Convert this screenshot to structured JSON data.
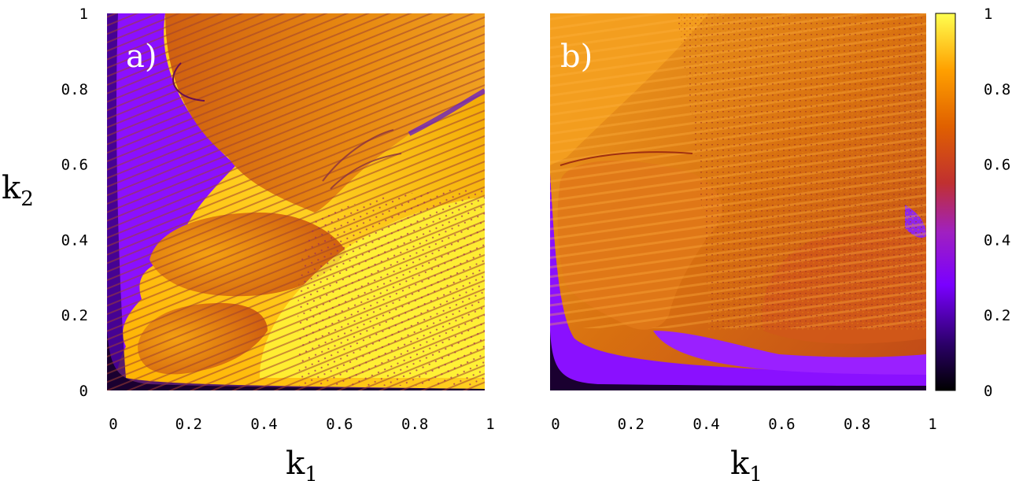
{
  "chart_data": [
    {
      "type": "heatmap",
      "panel_label": "a)",
      "xlabel": "k",
      "xlabel_sub": "1",
      "ylabel": "k",
      "ylabel_sub": "2",
      "xlim": [
        0,
        1
      ],
      "ylim": [
        0,
        1
      ],
      "xticks": [
        "0",
        "0.2",
        "0.4",
        "0.6",
        "0.8",
        "1"
      ],
      "yticks": [
        "0",
        "0.2",
        "0.4",
        "0.6",
        "0.8",
        "1"
      ],
      "grid": false,
      "colormap": [
        "#000000",
        "#2a0066",
        "#8a10ff",
        "#c0306f",
        "#e87000",
        "#ffa000",
        "#ffff40"
      ]
    },
    {
      "type": "heatmap",
      "panel_label": "b)",
      "xlabel": "k",
      "xlabel_sub": "1",
      "xlim": [
        0,
        1
      ],
      "ylim": [
        0,
        1
      ],
      "xticks": [
        "0",
        "0.2",
        "0.4",
        "0.6",
        "0.8",
        "1"
      ],
      "grid": false,
      "colorbar": {
        "range": [
          0,
          1
        ],
        "ticks": [
          "0",
          "0.2",
          "0.4",
          "0.6",
          "0.8",
          "1"
        ]
      }
    }
  ]
}
